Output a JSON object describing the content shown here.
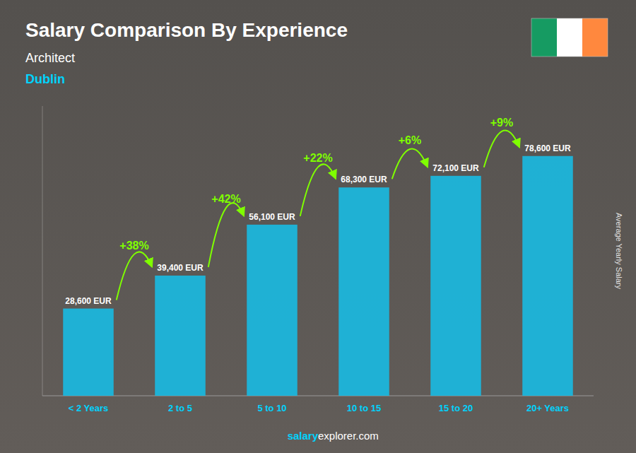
{
  "chart_data": {
    "type": "bar",
    "title": "Salary Comparison By Experience",
    "subtitle": "Architect",
    "subtitle2": "Dublin",
    "ylabel": "Average Yearly Salary",
    "categories": [
      "< 2 Years",
      "2 to 5",
      "5 to 10",
      "10 to 15",
      "15 to 20",
      "20+ Years"
    ],
    "values": [
      28600,
      39400,
      56100,
      68300,
      72100,
      78600
    ],
    "value_labels": [
      "28,600 EUR",
      "39,400 EUR",
      "56,100 EUR",
      "68,300 EUR",
      "72,100 EUR",
      "78,600 EUR"
    ],
    "data_labels": true,
    "color": "#1ab8e0",
    "ylim": [
      0,
      95000
    ],
    "tick_labels": "x",
    "grid": false,
    "annotations": [
      "+38%",
      "+42%",
      "+22%",
      "+6%",
      "+9%"
    ],
    "footer": [
      "salary",
      "explorer.com"
    ]
  }
}
